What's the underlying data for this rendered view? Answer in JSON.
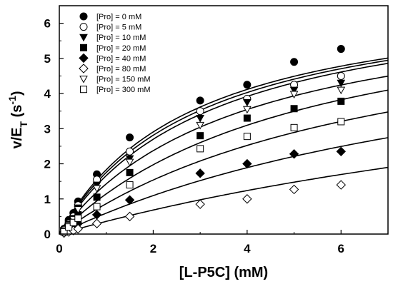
{
  "chart_data": {
    "type": "scatter",
    "xlabel": "[L-P5C] (mM)",
    "ylabel": {
      "base": "v/E",
      "sub": "T",
      "paren_open": " (s",
      "sup": "-1",
      "paren_close": ")"
    },
    "xlim": [
      0,
      7
    ],
    "ylim": [
      0,
      6.5
    ],
    "x_ticks": [
      "0",
      "2",
      "4",
      "6"
    ],
    "y_ticks": [
      "0",
      "1",
      "2",
      "3",
      "4",
      "5",
      "6"
    ],
    "legend_position": "top-left",
    "grid": false,
    "fits": true,
    "series": [
      {
        "name": "[Pro] = 0 mM",
        "marker": "circle-filled",
        "x": [
          0.1,
          0.2,
          0.3,
          0.4,
          0.8,
          1.5,
          3,
          4,
          5,
          6
        ],
        "y": [
          0.15,
          0.4,
          0.6,
          0.93,
          1.7,
          2.75,
          3.8,
          4.25,
          4.9,
          5.27
        ],
        "fit_vmax": 7.05,
        "fit_km": 2.85
      },
      {
        "name": "[Pro] = 5 mM",
        "marker": "circle-open",
        "x": [
          0.1,
          0.2,
          0.3,
          0.4,
          0.8,
          1.5,
          3,
          4,
          5,
          6
        ],
        "y": [
          0.12,
          0.3,
          0.5,
          0.82,
          1.55,
          2.35,
          3.5,
          3.85,
          4.25,
          4.5
        ],
        "fit_vmax": 7.1,
        "fit_km": 3.05
      },
      {
        "name": "[Pro] = 10 mM",
        "marker": "triangle-down-filled",
        "x": [
          0.1,
          0.2,
          0.3,
          0.4,
          0.8,
          1.5,
          3,
          4,
          5,
          6
        ],
        "y": [
          0.1,
          0.28,
          0.45,
          0.75,
          1.4,
          2.15,
          3.3,
          3.75,
          4.1,
          4.3
        ],
        "fit_vmax": 7.15,
        "fit_km": 3.3
      },
      {
        "name": "[Pro] = 20 mM",
        "marker": "square-filled",
        "x": [
          0.1,
          0.2,
          0.3,
          0.4,
          0.8,
          1.5,
          3,
          4,
          5,
          6
        ],
        "y": [
          0.08,
          0.22,
          0.4,
          0.55,
          1.05,
          1.75,
          2.8,
          3.3,
          3.57,
          3.78
        ],
        "fit_vmax": 7.2,
        "fit_km": 5.3
      },
      {
        "name": "[Pro] = 40 mM",
        "marker": "diamond-filled",
        "x": [
          0.1,
          0.2,
          0.3,
          0.4,
          0.8,
          1.5,
          3,
          4,
          5,
          6
        ],
        "y": [
          0.06,
          0.14,
          0.25,
          0.3,
          0.55,
          0.97,
          1.73,
          2.0,
          2.28,
          2.35
        ],
        "fit_vmax": 6.9,
        "fit_km": 10.6
      },
      {
        "name": "[Pro] = 80 mM",
        "marker": "diamond-open",
        "x": [
          0.1,
          0.2,
          0.3,
          0.4,
          0.8,
          1.5,
          3,
          4,
          5,
          6
        ],
        "y": [
          0.03,
          0.06,
          0.1,
          0.15,
          0.3,
          0.5,
          0.85,
          1.0,
          1.27,
          1.4
        ],
        "fit_vmax": 6.5,
        "fit_km": 17
      },
      {
        "name": "[Pro] = 150 mM",
        "marker": "triangle-down-open",
        "x": [
          0.1,
          0.2,
          0.3,
          0.4,
          0.8,
          1.5,
          3,
          4,
          5,
          6
        ],
        "y": [
          0.1,
          0.25,
          0.42,
          0.7,
          1.3,
          2.05,
          3.1,
          3.55,
          3.98,
          4.1
        ],
        "fit_vmax": 7.0,
        "fit_km": 3.9
      },
      {
        "name": "[Pro] = 300 mM",
        "marker": "square-open",
        "x": [
          0.1,
          0.2,
          0.3,
          0.4,
          0.8,
          1.5,
          3,
          4,
          5,
          6
        ],
        "y": [
          0.06,
          0.2,
          0.33,
          0.45,
          0.78,
          1.4,
          2.43,
          2.78,
          3.03,
          3.2
        ],
        "fit_vmax": 7.0,
        "fit_km": 7.1
      }
    ]
  }
}
